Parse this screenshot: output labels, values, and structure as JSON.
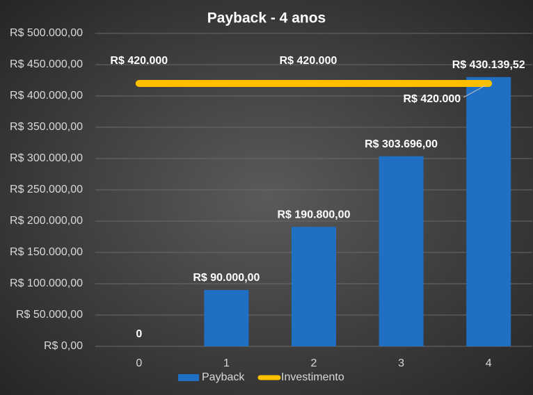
{
  "chart_data": {
    "type": "bar",
    "title": "Payback  - 4 anos",
    "categories": [
      "0",
      "1",
      "2",
      "3",
      "4"
    ],
    "series": [
      {
        "name": "Payback",
        "type": "bar",
        "color": "#1f6fc5",
        "values": [
          0,
          90000,
          190800,
          303696,
          430139.52
        ],
        "value_labels": [
          "0",
          "R$ 90.000,00",
          "R$ 190.800,00",
          "R$ 303.696,00",
          "R$ 430.139,52"
        ]
      },
      {
        "name": "Investimento",
        "type": "line",
        "color": "#ffc000",
        "values": [
          420000,
          420000,
          420000,
          420000,
          420000
        ],
        "value_labels": [
          "R$ 420.000",
          null,
          "R$ 420.000",
          null,
          "R$ 420.000"
        ]
      }
    ],
    "ylim": [
      0,
      500000
    ],
    "yticks": [
      {
        "value": 0,
        "label": "R$ 0,00"
      },
      {
        "value": 50000,
        "label": "R$ 50.000,00"
      },
      {
        "value": 100000,
        "label": "R$ 100.000,00"
      },
      {
        "value": 150000,
        "label": "R$ 150.000,00"
      },
      {
        "value": 200000,
        "label": "R$ 200.000,00"
      },
      {
        "value": 250000,
        "label": "R$ 250.000,00"
      },
      {
        "value": 300000,
        "label": "R$ 300.000,00"
      },
      {
        "value": 350000,
        "label": "R$ 350.000,00"
      },
      {
        "value": 400000,
        "label": "R$ 400.000,00"
      },
      {
        "value": 450000,
        "label": "R$ 450.000,00"
      },
      {
        "value": 500000,
        "label": "R$ 500.000,00"
      }
    ],
    "grid": true,
    "legend": "bottom"
  }
}
